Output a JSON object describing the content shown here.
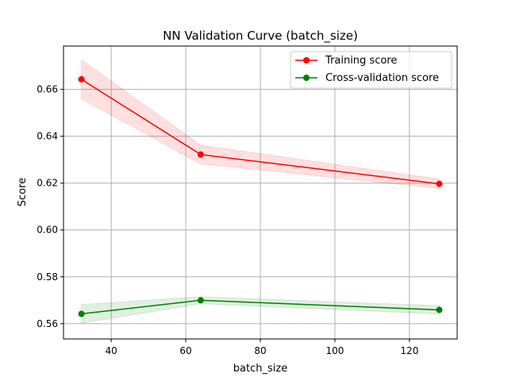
{
  "chart_data": {
    "type": "line",
    "title": "NN Validation Curve (batch_size)",
    "xlabel": "batch_size",
    "ylabel": "Score",
    "xlim": [
      27.2,
      132.8
    ],
    "ylim": [
      0.5535,
      0.6785
    ],
    "xticks": [
      40,
      60,
      80,
      100,
      120
    ],
    "yticks": [
      0.56,
      0.58,
      0.6,
      0.62,
      0.64,
      0.66
    ],
    "ytick_labels": [
      "0.56",
      "0.58",
      "0.60",
      "0.62",
      "0.64",
      "0.66"
    ],
    "grid": true,
    "legend_position": "top-right",
    "x": [
      32,
      64,
      128
    ],
    "series": [
      {
        "name": "Training score",
        "color": "#ff0000",
        "band_color": "#ff0000",
        "values": [
          0.6643,
          0.6322,
          0.6197
        ],
        "band_lower": [
          0.656,
          0.6282,
          0.6177
        ],
        "band_upper": [
          0.6726,
          0.6362,
          0.6217
        ]
      },
      {
        "name": "Cross-validation score",
        "color": "#008000",
        "band_color": "#008000",
        "values": [
          0.5642,
          0.57,
          0.5659
        ],
        "band_lower": [
          0.5602,
          0.5685,
          0.5641
        ],
        "band_upper": [
          0.5682,
          0.5715,
          0.5677
        ]
      }
    ]
  }
}
